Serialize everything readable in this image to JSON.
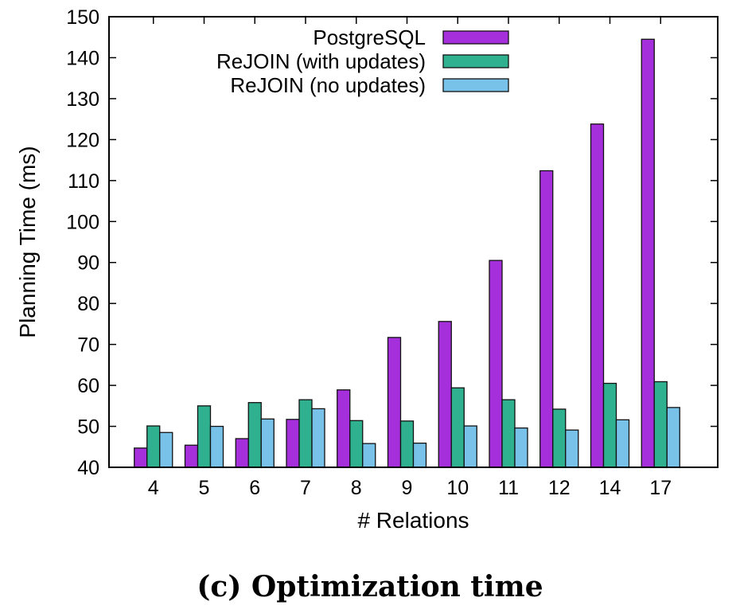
{
  "chart_data": {
    "type": "bar",
    "title": "",
    "xlabel": "# Relations",
    "ylabel": "Planning Time (ms)",
    "ylim": [
      40,
      150
    ],
    "yticks": [
      40,
      50,
      60,
      70,
      80,
      90,
      100,
      110,
      120,
      130,
      140,
      150
    ],
    "categories": [
      "4",
      "5",
      "6",
      "7",
      "8",
      "9",
      "10",
      "11",
      "12",
      "14",
      "17"
    ],
    "legend_position": "top-right",
    "grid": false,
    "series": [
      {
        "name": "PostgreSQL",
        "color": "#a62fdc",
        "values": [
          44.7,
          45.4,
          47.0,
          51.7,
          58.9,
          71.7,
          75.6,
          90.5,
          112.4,
          123.8,
          144.5
        ]
      },
      {
        "name": "ReJOIN (with updates)",
        "color": "#2fb08e",
        "values": [
          50.1,
          55.0,
          55.8,
          56.5,
          51.4,
          51.3,
          59.4,
          56.5,
          54.2,
          60.5,
          60.9
        ]
      },
      {
        "name": "ReJOIN (no updates)",
        "color": "#78c2ea",
        "values": [
          48.5,
          50.0,
          51.8,
          54.3,
          45.8,
          45.9,
          50.1,
          49.6,
          49.1,
          51.6,
          54.6
        ]
      }
    ]
  },
  "caption": "(c) Optimization time"
}
